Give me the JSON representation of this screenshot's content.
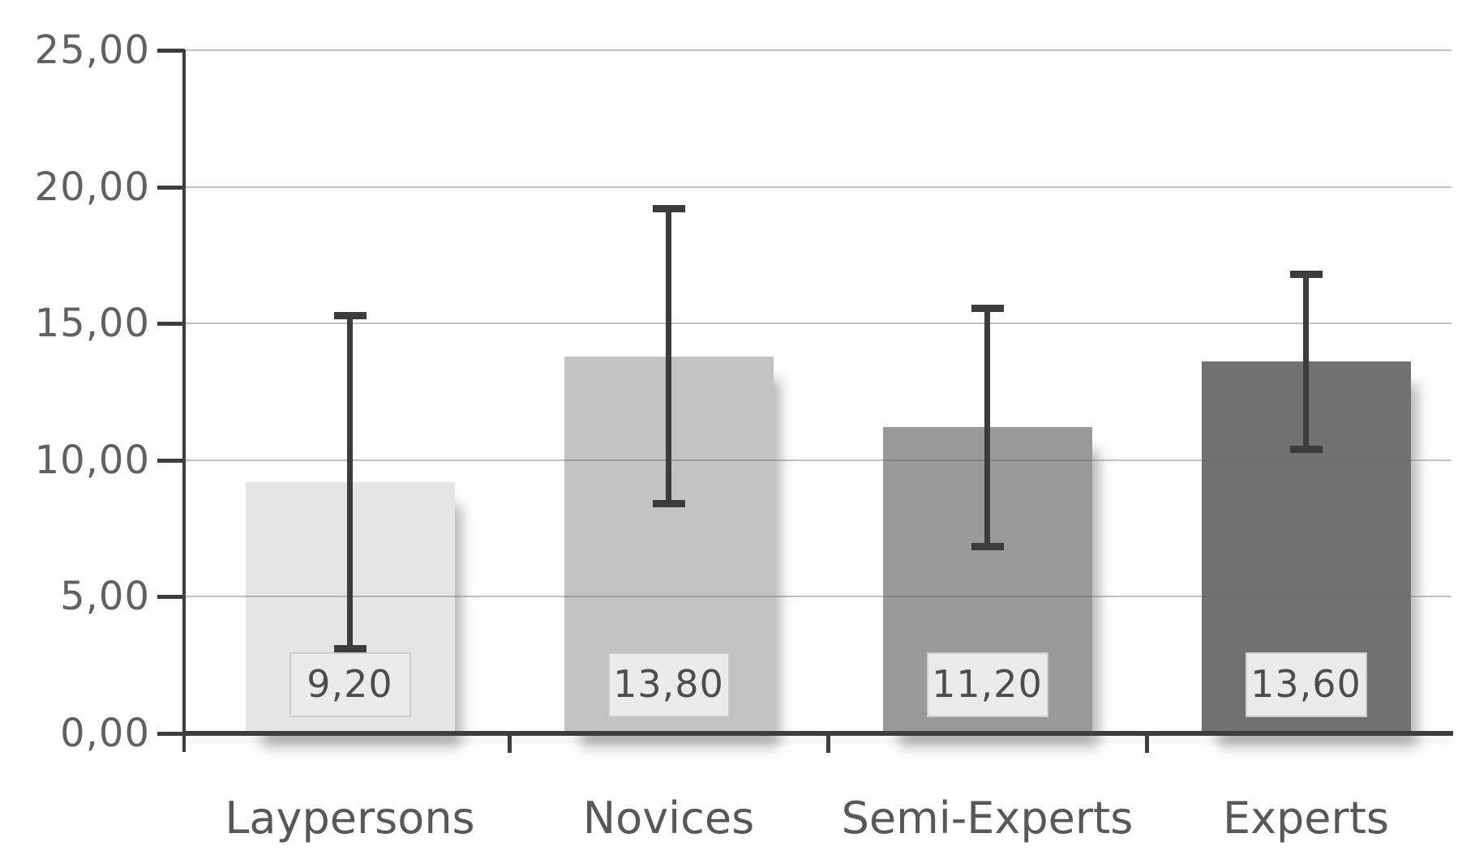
{
  "chart_data": {
    "type": "bar",
    "title": "",
    "xlabel": "",
    "ylabel": "",
    "categories": [
      "Laypersons",
      "Novices",
      "Semi-Experts",
      "Experts"
    ],
    "values": [
      9.2,
      13.8,
      11.2,
      13.6
    ],
    "value_labels": [
      "9,20",
      "13,80",
      "11,20",
      "13,60"
    ],
    "error_low": [
      3.1,
      8.4,
      6.85,
      10.4
    ],
    "error_high": [
      15.3,
      19.2,
      15.55,
      16.8
    ],
    "ylim": [
      0,
      25
    ],
    "yticks": [
      0,
      5,
      10,
      15,
      20,
      25
    ],
    "ytick_labels": [
      "0,00",
      "5,00",
      "10,00",
      "15,00",
      "20,00",
      "25,00"
    ],
    "grid": true,
    "legend": false,
    "decimal_separator": ",",
    "bar_colors": [
      "#e5e5e5",
      "#c3c3c3",
      "#999999",
      "#717171"
    ]
  },
  "colors": {
    "background": "#ffffff",
    "axis": "#3e3e3e",
    "gridline": "rgba(100,100,100,0.40)",
    "error_bar": "#3c3c3c",
    "tick_label_text": "#616161",
    "category_text": "#585858",
    "value_text": "#4d4d4d",
    "value_box_bg": "#ebebeb",
    "value_box_border": "#cdcdcd"
  }
}
